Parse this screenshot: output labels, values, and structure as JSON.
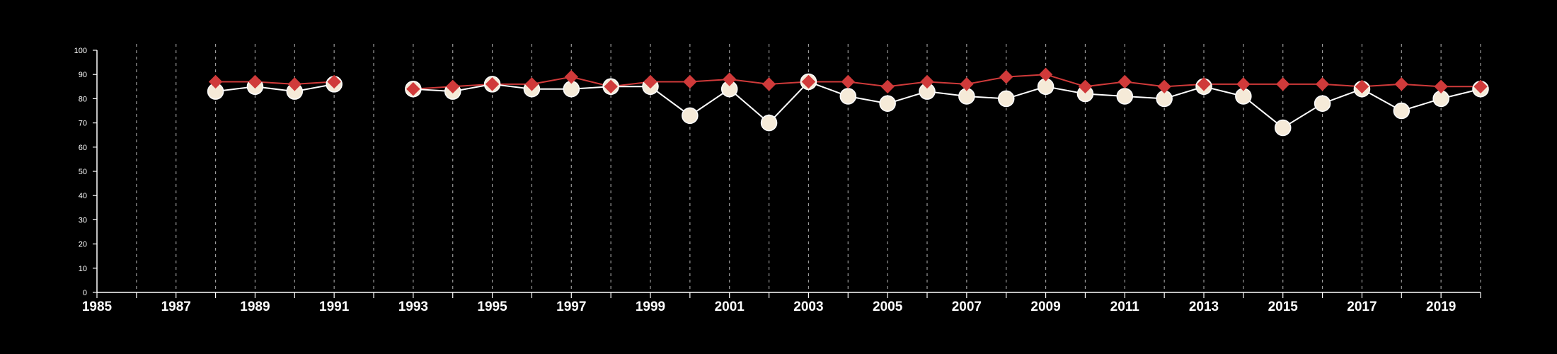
{
  "chart_data": {
    "type": "line",
    "title": "",
    "xlabel": "",
    "ylabel": "",
    "xlim": [
      1985,
      2020
    ],
    "ylim": [
      0,
      100
    ],
    "x_ticks": [
      1985,
      1987,
      1989,
      1991,
      1993,
      1995,
      1997,
      1999,
      2001,
      2003,
      2005,
      2007,
      2009,
      2011,
      2013,
      2015,
      2017,
      2019
    ],
    "y_ticks": [
      0,
      10,
      20,
      30,
      40,
      50,
      60,
      70,
      80,
      90,
      100
    ],
    "vertical_gridlines": "dashed, every year",
    "legend": "none",
    "x": [
      1988,
      1989,
      1990,
      1991,
      1992,
      1993,
      1994,
      1995,
      1996,
      1997,
      1998,
      1999,
      2000,
      2001,
      2002,
      2003,
      2004,
      2005,
      2006,
      2007,
      2008,
      2009,
      2010,
      2011,
      2012,
      2013,
      2014,
      2015,
      2016,
      2017,
      2018,
      2019,
      2020
    ],
    "series": [
      {
        "marker": "diamond",
        "color": "#d03a3a",
        "values": [
          87,
          87,
          86,
          87,
          null,
          84,
          85,
          86,
          86,
          89,
          85,
          87,
          87,
          88,
          86,
          87,
          87,
          85,
          87,
          86,
          89,
          90,
          85,
          87,
          85,
          86,
          86,
          86,
          86,
          85,
          86,
          85,
          85
        ]
      },
      {
        "marker": "circle",
        "color": "#ffffff",
        "marker_fill": "#f5ead8",
        "values": [
          83,
          85,
          83,
          86,
          null,
          84,
          83,
          86,
          84,
          84,
          85,
          85,
          73,
          84,
          70,
          87,
          81,
          78,
          83,
          81,
          80,
          85,
          82,
          81,
          80,
          85,
          81,
          68,
          78,
          84,
          75,
          80,
          84
        ]
      }
    ]
  }
}
